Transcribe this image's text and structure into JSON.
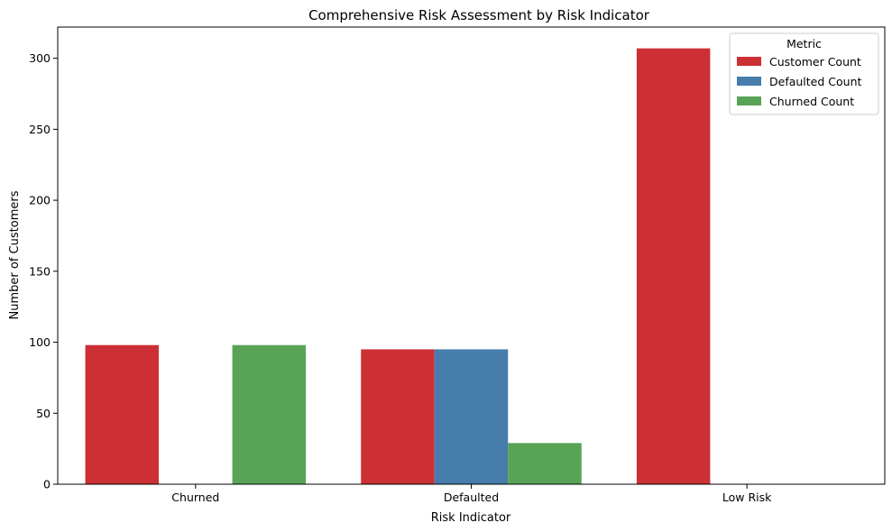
{
  "chart_data": {
    "type": "bar",
    "title": "Comprehensive Risk Assessment by Risk Indicator",
    "xlabel": "Risk Indicator",
    "ylabel": "Number of Customers",
    "categories": [
      "Churned",
      "Defaulted",
      "Low Risk"
    ],
    "series": [
      {
        "name": "Customer Count",
        "values": [
          98,
          95,
          307
        ],
        "color": "#cc3035"
      },
      {
        "name": "Defaulted Count",
        "values": [
          0,
          95,
          0
        ],
        "color": "#467dab"
      },
      {
        "name": "Churned Count",
        "values": [
          98,
          29,
          0
        ],
        "color": "#59a357"
      }
    ],
    "ylim": [
      0,
      322
    ],
    "yticks": [
      0,
      50,
      100,
      150,
      200,
      250,
      300
    ],
    "grid": false,
    "legend": {
      "title": "Metric",
      "placement": "top-right"
    }
  }
}
